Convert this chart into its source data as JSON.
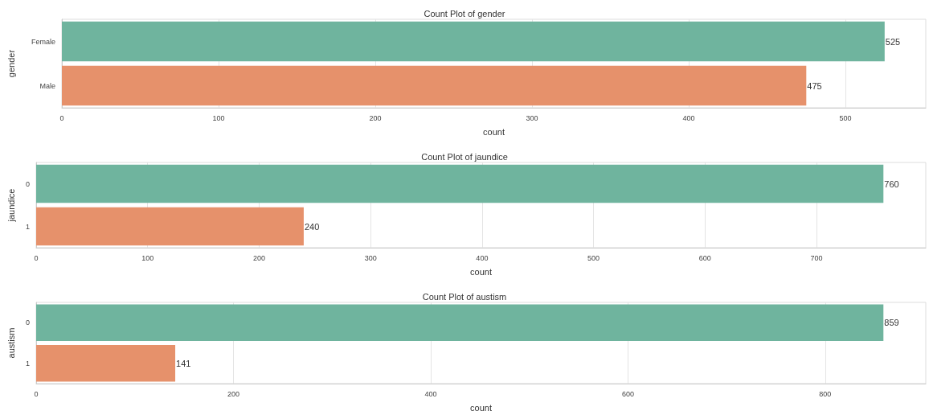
{
  "chart_data": [
    {
      "type": "bar",
      "orientation": "horizontal",
      "title": "Count Plot of gender",
      "xlabel": "count",
      "ylabel": "gender",
      "categories": [
        "Female",
        "Male"
      ],
      "values": [
        525,
        475
      ],
      "colors": [
        "#6fb49e",
        "#e6916b"
      ],
      "xlim": [
        0,
        551.25
      ],
      "xticks": [
        0,
        100,
        200,
        300,
        400,
        500
      ],
      "grid": "x",
      "data_labels": true
    },
    {
      "type": "bar",
      "orientation": "horizontal",
      "title": "Count Plot of jaundice",
      "xlabel": "count",
      "ylabel": "jaundice",
      "categories": [
        "0",
        "1"
      ],
      "values": [
        760,
        240
      ],
      "colors": [
        "#6fb49e",
        "#e6916b"
      ],
      "xlim": [
        0,
        798
      ],
      "xticks": [
        0,
        100,
        200,
        300,
        400,
        500,
        600,
        700
      ],
      "grid": "x",
      "data_labels": true
    },
    {
      "type": "bar",
      "orientation": "horizontal",
      "title": "Count Plot of austism",
      "xlabel": "count",
      "ylabel": "austism",
      "categories": [
        "0",
        "1"
      ],
      "values": [
        859,
        141
      ],
      "colors": [
        "#6fb49e",
        "#e6916b"
      ],
      "xlim": [
        0,
        901.95
      ],
      "xticks": [
        0,
        200,
        400,
        600,
        800
      ],
      "grid": "x",
      "data_labels": true
    }
  ]
}
